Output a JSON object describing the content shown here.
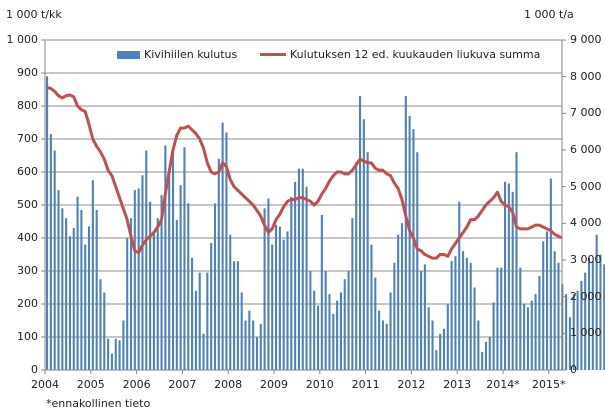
{
  "chart_data": {
    "type": "bar+line",
    "title": "",
    "left_axis": {
      "label": "1 000 t/kk",
      "ticks": [
        "0",
        "100",
        "200",
        "300",
        "400",
        "500",
        "600",
        "700",
        "800",
        "900",
        "1 000"
      ],
      "range": [
        0,
        1000
      ]
    },
    "right_axis": {
      "label": "1 000 t/a",
      "ticks": [
        "0",
        "1 000",
        "2 000",
        "3 000",
        "4 000",
        "5 000",
        "6 000",
        "7 000",
        "8 000",
        "9 000"
      ],
      "range": [
        0,
        9000
      ]
    },
    "x_ticks": [
      "2004",
      "2005",
      "2006",
      "2007",
      "2008",
      "2009",
      "2010",
      "2011",
      "2012",
      "2013",
      "2014*",
      "2015*"
    ],
    "footnote": "*ennakollinen tieto",
    "grid": true,
    "legend_position": "top-inside",
    "series": [
      {
        "name": "Kivihiilen kulutus",
        "type": "bar",
        "axis": "left",
        "color": "#4f81bd",
        "values": [
          890,
          715,
          665,
          545,
          490,
          460,
          405,
          430,
          525,
          485,
          380,
          435,
          575,
          485,
          275,
          235,
          95,
          50,
          95,
          90,
          150,
          400,
          460,
          545,
          550,
          590,
          665,
          510,
          420,
          460,
          530,
          680,
          610,
          660,
          455,
          560,
          675,
          505,
          340,
          240,
          295,
          110,
          295,
          385,
          505,
          640,
          750,
          720,
          410,
          330,
          330,
          235,
          150,
          180,
          150,
          100,
          140,
          490,
          520,
          380,
          440,
          435,
          395,
          420,
          525,
          570,
          610,
          610,
          555,
          300,
          240,
          195,
          470,
          300,
          230,
          170,
          210,
          235,
          275,
          300,
          460,
          630,
          830,
          760,
          660,
          380,
          280,
          180,
          150,
          140,
          235,
          325,
          410,
          445,
          830,
          770,
          730,
          660,
          300,
          320,
          190,
          150,
          60,
          110,
          125,
          200,
          330,
          345,
          510,
          360,
          340,
          325,
          250,
          150,
          55,
          85,
          100,
          205,
          310,
          310,
          570,
          565,
          540,
          660,
          310,
          200,
          190,
          210,
          230,
          285,
          390,
          420,
          580,
          360,
          325,
          260,
          230,
          160,
          230,
          240,
          270,
          295,
          340,
          330,
          410,
          350,
          320
        ]
      },
      {
        "name": "Kulutuksen 12 ed. kuukauden liukuva summa",
        "type": "line",
        "axis": "right",
        "color": "#c0504d",
        "values": [
          7700,
          7680,
          7600,
          7480,
          7420,
          7480,
          7500,
          7450,
          7200,
          7100,
          7050,
          6700,
          6300,
          6100,
          5950,
          5750,
          5450,
          5300,
          5000,
          4700,
          4400,
          4100,
          3650,
          3250,
          3200,
          3400,
          3550,
          3650,
          3750,
          3900,
          4100,
          4800,
          5400,
          6000,
          6400,
          6600,
          6600,
          6650,
          6550,
          6450,
          6300,
          6050,
          5650,
          5400,
          5350,
          5400,
          5650,
          5550,
          5200,
          5000,
          4900,
          4800,
          4700,
          4600,
          4500,
          4350,
          4200,
          3950,
          3750,
          3850,
          4100,
          4250,
          4450,
          4600,
          4650,
          4650,
          4700,
          4700,
          4650,
          4600,
          4500,
          4600,
          4800,
          4950,
          5150,
          5300,
          5400,
          5400,
          5350,
          5350,
          5450,
          5600,
          5750,
          5700,
          5650,
          5650,
          5500,
          5450,
          5450,
          5350,
          5300,
          5100,
          4950,
          4650,
          4200,
          3800,
          3600,
          3300,
          3250,
          3150,
          3100,
          3050,
          3050,
          3150,
          3150,
          3100,
          3300,
          3450,
          3600,
          3750,
          3900,
          4100,
          4100,
          4200,
          4350,
          4500,
          4600,
          4700,
          4850,
          4600,
          4500,
          4450,
          4300,
          3900,
          3850,
          3850,
          3850,
          3900,
          3950,
          3950,
          3900,
          3850,
          3800,
          3700,
          3650,
          3600
        ]
      }
    ]
  },
  "legend": {
    "bar_label": "Kivihiilen kulutus",
    "line_label": "Kulutuksen 12 ed. kuukauden liukuva summa"
  }
}
